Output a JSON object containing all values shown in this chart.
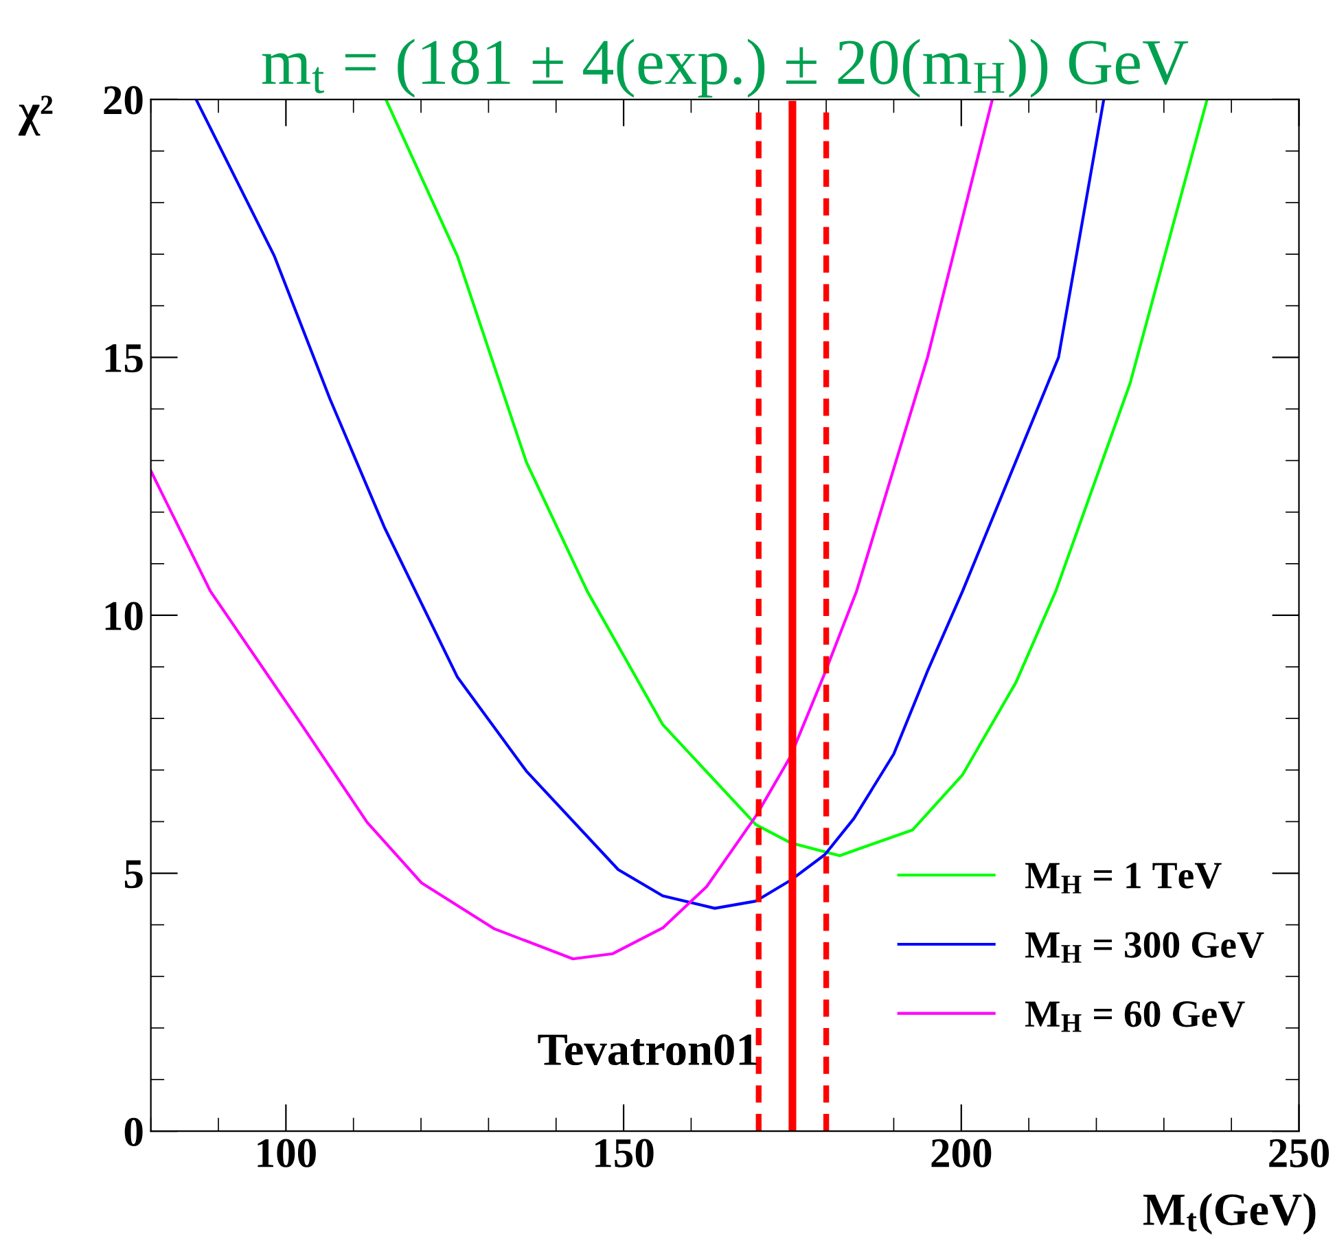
{
  "chart_data": {
    "type": "line",
    "title": "m$_{t}$ = (181 ± 4(exp.) ± 20(m$_{H}$)) GeV",
    "xlabel": "M$_{t}$(GeV)",
    "ylabel": "χ²",
    "xlim": [
      80,
      250
    ],
    "xticks": [
      100,
      150,
      200,
      250
    ],
    "ylim": [
      0,
      20
    ],
    "yticks": [
      0,
      5,
      10,
      15,
      20
    ],
    "grid": false,
    "legend": "bottom right",
    "marker": "none",
    "line_style": "solid",
    "series": [
      {
        "name": "M$_{H}$ = 1 TeV",
        "color": "#00ff00",
        "x": [
          114.8,
          125.4,
          135.6,
          144.6,
          155.8,
          169.6,
          174.7,
          182,
          192.8,
          200.2,
          208.1,
          214,
          225,
          236.4
        ],
        "values": [
          20,
          16.96,
          12.97,
          10.47,
          7.88,
          5.94,
          5.59,
          5.34,
          5.84,
          6.91,
          8.7,
          10.47,
          14.5,
          20
        ]
      },
      {
        "name": "M$_{H}$ = 300 GeV",
        "color": "#0000ff",
        "x": [
          86.7,
          98.3,
          106.5,
          114.6,
          125.4,
          135.6,
          149.2,
          155.8,
          163.5,
          169.6,
          174.7,
          179.8,
          184.1,
          190,
          195.1,
          200.2,
          214.4,
          221.1
        ],
        "values": [
          20,
          16.96,
          14.2,
          11.7,
          8.8,
          6.98,
          5.07,
          4.56,
          4.32,
          4.46,
          4.86,
          5.36,
          6.06,
          7.31,
          8.95,
          10.47,
          15,
          20
        ]
      },
      {
        "name": "M$_{H}$ = 60 GeV",
        "color": "#ff00ff",
        "x": [
          80,
          88.8,
          101.8,
          112,
          120.1,
          130.9,
          142.5,
          148.4,
          155.8,
          162.3,
          169.6,
          174.7,
          179.8,
          184.5,
          195,
          204.6
        ],
        "values": [
          12.8,
          10.47,
          7.98,
          5.99,
          4.81,
          3.92,
          3.34,
          3.44,
          3.94,
          4.74,
          6.11,
          7.26,
          8.88,
          10.47,
          15,
          20
        ]
      }
    ],
    "ref_lines": [
      {
        "axis": "x",
        "value": 170,
        "color": "#ff0000",
        "line_style": "dashed"
      },
      {
        "axis": "x",
        "value": 175,
        "color": "#ff0000",
        "line_style": "solid"
      },
      {
        "axis": "x",
        "value": 180,
        "color": "#ff0000",
        "line_style": "dashed"
      }
    ],
    "annotations": [
      {
        "text": "Tevatron01",
        "x": 170,
        "y": 1.5
      }
    ]
  }
}
